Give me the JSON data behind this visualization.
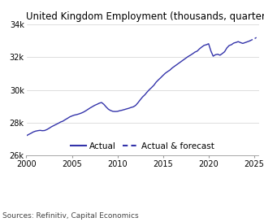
{
  "title": "United Kingdom Employment (thousands, quarterly)",
  "source": "Sources: Refinitiv, Capital Economics",
  "line_color": "#3333aa",
  "background_color": "#ffffff",
  "ylim": [
    26000,
    34000
  ],
  "xlim": [
    2000,
    2025.5
  ],
  "yticks": [
    26000,
    28000,
    30000,
    32000,
    34000
  ],
  "ytick_labels": [
    "26k",
    "28k",
    "30k",
    "32k",
    "34k"
  ],
  "xticks": [
    2000,
    2005,
    2010,
    2015,
    2020,
    2025
  ],
  "actual_data": [
    [
      2000.0,
      27200
    ],
    [
      2000.25,
      27280
    ],
    [
      2000.5,
      27350
    ],
    [
      2000.75,
      27430
    ],
    [
      2001.0,
      27480
    ],
    [
      2001.25,
      27510
    ],
    [
      2001.5,
      27530
    ],
    [
      2001.75,
      27510
    ],
    [
      2002.0,
      27520
    ],
    [
      2002.25,
      27580
    ],
    [
      2002.5,
      27660
    ],
    [
      2002.75,
      27750
    ],
    [
      2003.0,
      27820
    ],
    [
      2003.25,
      27890
    ],
    [
      2003.5,
      27960
    ],
    [
      2003.75,
      28040
    ],
    [
      2004.0,
      28090
    ],
    [
      2004.25,
      28180
    ],
    [
      2004.5,
      28260
    ],
    [
      2004.75,
      28350
    ],
    [
      2005.0,
      28410
    ],
    [
      2005.25,
      28460
    ],
    [
      2005.5,
      28490
    ],
    [
      2005.75,
      28530
    ],
    [
      2006.0,
      28580
    ],
    [
      2006.25,
      28640
    ],
    [
      2006.5,
      28720
    ],
    [
      2006.75,
      28810
    ],
    [
      2007.0,
      28900
    ],
    [
      2007.25,
      28980
    ],
    [
      2007.5,
      29060
    ],
    [
      2007.75,
      29120
    ],
    [
      2008.0,
      29190
    ],
    [
      2008.25,
      29230
    ],
    [
      2008.5,
      29120
    ],
    [
      2008.75,
      28960
    ],
    [
      2009.0,
      28820
    ],
    [
      2009.25,
      28740
    ],
    [
      2009.5,
      28690
    ],
    [
      2009.75,
      28680
    ],
    [
      2010.0,
      28690
    ],
    [
      2010.25,
      28730
    ],
    [
      2010.5,
      28760
    ],
    [
      2010.75,
      28800
    ],
    [
      2011.0,
      28840
    ],
    [
      2011.25,
      28880
    ],
    [
      2011.5,
      28930
    ],
    [
      2011.75,
      28970
    ],
    [
      2012.0,
      29060
    ],
    [
      2012.25,
      29220
    ],
    [
      2012.5,
      29400
    ],
    [
      2012.75,
      29570
    ],
    [
      2013.0,
      29700
    ],
    [
      2013.25,
      29870
    ],
    [
      2013.5,
      30020
    ],
    [
      2013.75,
      30150
    ],
    [
      2014.0,
      30290
    ],
    [
      2014.25,
      30480
    ],
    [
      2014.5,
      30620
    ],
    [
      2014.75,
      30750
    ],
    [
      2015.0,
      30890
    ],
    [
      2015.25,
      31020
    ],
    [
      2015.5,
      31120
    ],
    [
      2015.75,
      31210
    ],
    [
      2016.0,
      31340
    ],
    [
      2016.25,
      31440
    ],
    [
      2016.5,
      31540
    ],
    [
      2016.75,
      31640
    ],
    [
      2017.0,
      31740
    ],
    [
      2017.25,
      31840
    ],
    [
      2017.5,
      31940
    ],
    [
      2017.75,
      32040
    ],
    [
      2018.0,
      32120
    ],
    [
      2018.25,
      32210
    ],
    [
      2018.5,
      32310
    ],
    [
      2018.75,
      32370
    ],
    [
      2019.0,
      32510
    ],
    [
      2019.25,
      32620
    ],
    [
      2019.5,
      32720
    ],
    [
      2019.75,
      32760
    ],
    [
      2020.0,
      32820
    ],
    [
      2020.25,
      32380
    ],
    [
      2020.5,
      32060
    ],
    [
      2020.75,
      32150
    ],
    [
      2021.0,
      32180
    ],
    [
      2021.25,
      32120
    ],
    [
      2021.5,
      32220
    ],
    [
      2021.75,
      32330
    ],
    [
      2022.0,
      32560
    ],
    [
      2022.25,
      32710
    ],
    [
      2022.5,
      32760
    ],
    [
      2022.75,
      32860
    ],
    [
      2023.0,
      32900
    ],
    [
      2023.25,
      32950
    ],
    [
      2023.5,
      32890
    ],
    [
      2023.75,
      32840
    ],
    [
      2024.0,
      32890
    ],
    [
      2024.25,
      32940
    ],
    [
      2024.5,
      32990
    ],
    [
      2024.75,
      33060
    ],
    [
      2025.0,
      33120
    ],
    [
      2025.25,
      33200
    ]
  ],
  "forecast_start": 2024.5,
  "title_fontsize": 8.5,
  "tick_fontsize": 7,
  "legend_fontsize": 7.5,
  "source_fontsize": 6.5
}
